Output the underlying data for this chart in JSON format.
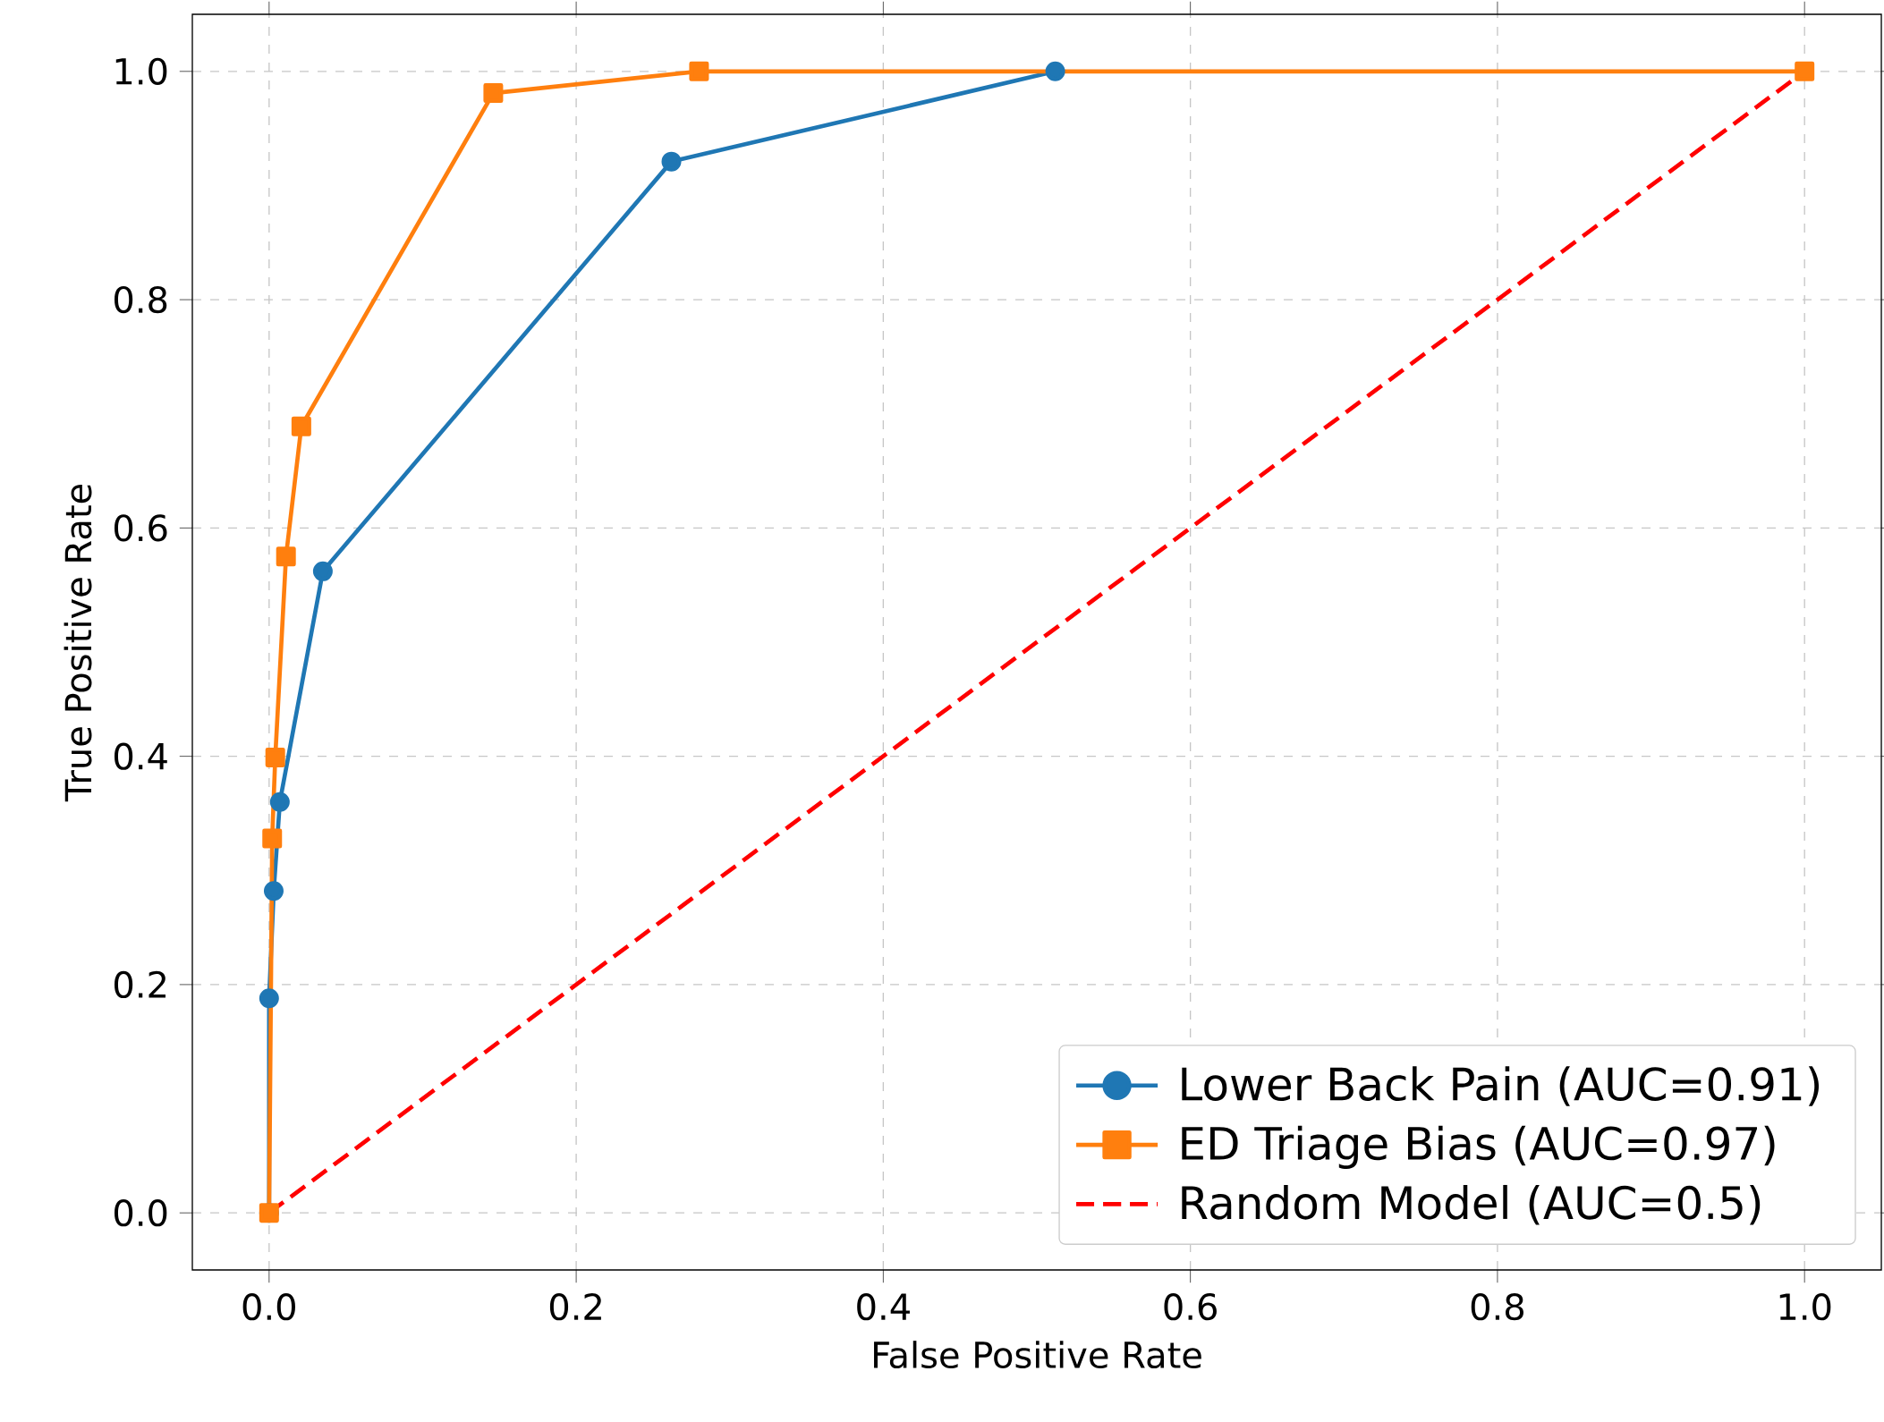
{
  "chart_data": {
    "type": "line",
    "xlabel": "False Positive Rate",
    "ylabel": "True Positive Rate",
    "xlim": [
      -0.05,
      1.05
    ],
    "ylim": [
      -0.05,
      1.05
    ],
    "xticks": [
      {
        "value": 0,
        "label": "0.0"
      },
      {
        "value": 0.2,
        "label": "0.2"
      },
      {
        "value": 0.4,
        "label": "0.4"
      },
      {
        "value": 0.6,
        "label": "0.6"
      },
      {
        "value": 0.8,
        "label": "0.8"
      },
      {
        "value": 1,
        "label": "1.0"
      }
    ],
    "yticks": [
      {
        "value": 0,
        "label": "0.0"
      },
      {
        "value": 0.2,
        "label": "0.2"
      },
      {
        "value": 0.4,
        "label": "0.4"
      },
      {
        "value": 0.6,
        "label": "0.6"
      },
      {
        "value": 0.8,
        "label": "0.8"
      },
      {
        "value": 1,
        "label": "1.0"
      }
    ],
    "grid": true,
    "legend": "bottom right",
    "series": [
      {
        "name": "Lower Back Pain (AUC=0.91)",
        "color": "#1f77b4",
        "marker": "circle",
        "line_style": "solid",
        "x": [
          0,
          0,
          0.003,
          0.007,
          0.035,
          0.262,
          0.512
        ],
        "values": [
          0,
          0.188,
          0.282,
          0.36,
          0.562,
          0.921,
          1
        ]
      },
      {
        "name": "ED Triage Bias (AUC=0.97)",
        "color": "#ff7f0e",
        "marker": "square",
        "line_style": "solid",
        "x": [
          0,
          0.002,
          0.004,
          0.011,
          0.021,
          0.146,
          0.28,
          1
        ],
        "values": [
          0,
          0.328,
          0.399,
          0.575,
          0.689,
          0.981,
          1,
          1
        ]
      },
      {
        "name": "Random Model (AUC=0.5)",
        "color": "#ff0000",
        "marker": "none",
        "line_style": "dashed",
        "x": [
          0,
          1
        ],
        "values": [
          0,
          1
        ]
      }
    ]
  }
}
